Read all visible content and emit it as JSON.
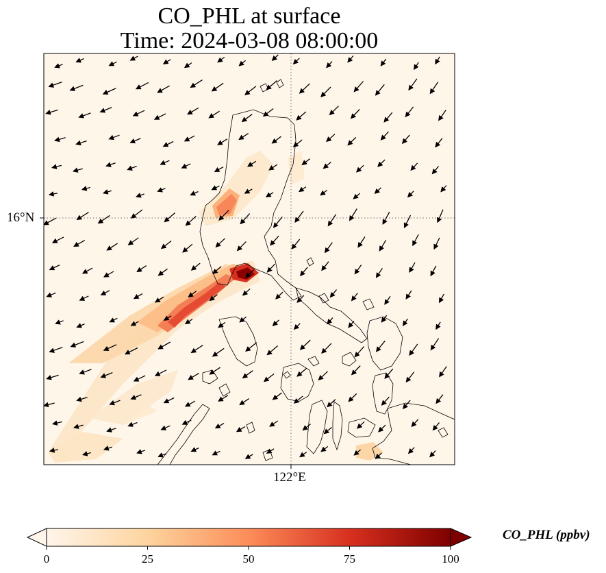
{
  "title": {
    "line1": "CO_PHL at surface",
    "line2": "Time: 2024-03-08 08:00:00"
  },
  "axes": {
    "lat_tick": "16°N",
    "lon_tick": "122°E",
    "gridlines": "dotted"
  },
  "colorbar": {
    "label": "CO_PHL (ppbv)",
    "ticks": [
      "0",
      "25",
      "50",
      "75",
      "100"
    ],
    "min": 0,
    "max": 100,
    "extend": "both",
    "colormap": [
      "#fff5eb",
      "#fdd49e",
      "#fc8d59",
      "#d7301f",
      "#990000",
      "#7f0000"
    ]
  },
  "colors": {
    "background": "#fff6ea",
    "coastline": "#000000",
    "wind_arrow": "#000000"
  }
}
